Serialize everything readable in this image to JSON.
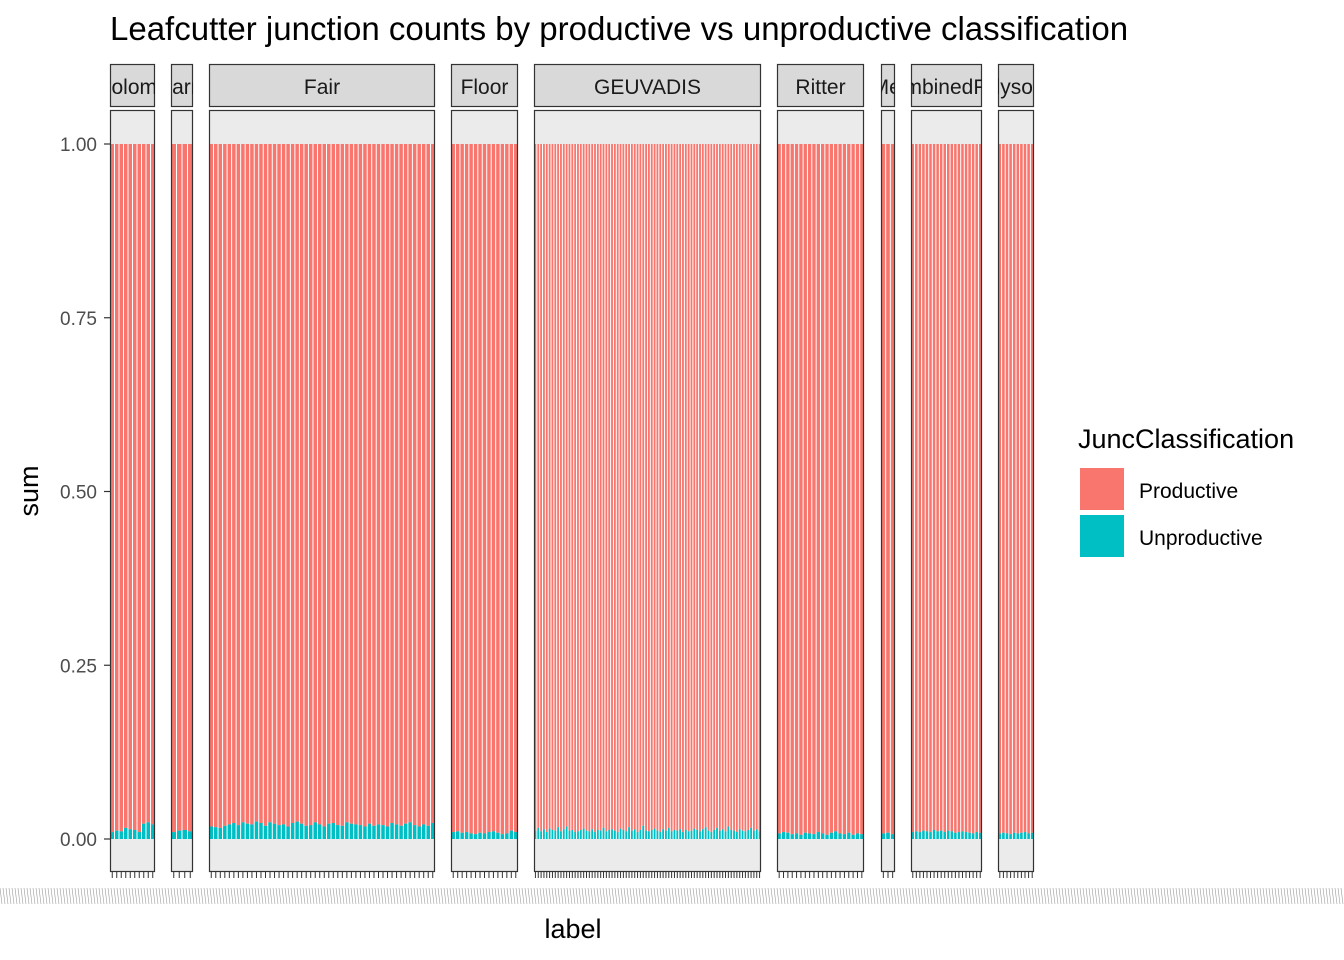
{
  "title": "Leafcutter junction counts by productive vs unproductive classification",
  "chart_data": {
    "type": "bar",
    "stacked": true,
    "position": "fill",
    "title": "Leafcutter junction counts by productive vs unproductive classification",
    "xlabel": "label",
    "ylabel": "sum",
    "ylim": [
      0,
      1
    ],
    "yticks": [
      0,
      0.25,
      0.5,
      0.75,
      1.0
    ],
    "ytick_labels": [
      "0.00",
      "0.25",
      "0.50",
      "0.75",
      "1.00"
    ],
    "legend": {
      "title": "JuncClassification",
      "position": "right",
      "entries": [
        {
          "name": "Productive",
          "color": "#F8766D"
        },
        {
          "name": "Unproductive",
          "color": "#00BFC4"
        }
      ]
    },
    "facets": [
      {
        "label": "Colomb",
        "unproductive": [
          0.01,
          0.012,
          0.011,
          0.016,
          0.014,
          0.013,
          0.01,
          0.022,
          0.024,
          0.021
        ]
      },
      {
        "label": "Garm",
        "unproductive": [
          0.01,
          0.012,
          0.013,
          0.011
        ]
      },
      {
        "label": "Fair",
        "unproductive": [
          0.018,
          0.017,
          0.016,
          0.019,
          0.021,
          0.023,
          0.02,
          0.024,
          0.022,
          0.021,
          0.025,
          0.023,
          0.019,
          0.024,
          0.022,
          0.02,
          0.021,
          0.018,
          0.023,
          0.025,
          0.022,
          0.019,
          0.02,
          0.024,
          0.021,
          0.018,
          0.022,
          0.023,
          0.02,
          0.019,
          0.024,
          0.022,
          0.021,
          0.02,
          0.018,
          0.022,
          0.019,
          0.021,
          0.02,
          0.018,
          0.023,
          0.021,
          0.019,
          0.022,
          0.024,
          0.02,
          0.018,
          0.021,
          0.019,
          0.023
        ]
      },
      {
        "label": "Floor",
        "unproductive": [
          0.01,
          0.011,
          0.009,
          0.01,
          0.008,
          0.007,
          0.009,
          0.008,
          0.01,
          0.011,
          0.009,
          0.007,
          0.008,
          0.012,
          0.01
        ]
      },
      {
        "label": "GEUVADIS",
        "unproductive": [
          0.012,
          0.016,
          0.011,
          0.014,
          0.01,
          0.015,
          0.013,
          0.012,
          0.017,
          0.011,
          0.014,
          0.018,
          0.012,
          0.013,
          0.01,
          0.011,
          0.013,
          0.015,
          0.012,
          0.011,
          0.014,
          0.01,
          0.013,
          0.012,
          0.016,
          0.011,
          0.013,
          0.014,
          0.012,
          0.01,
          0.015,
          0.013,
          0.011,
          0.017,
          0.012,
          0.014,
          0.01,
          0.013,
          0.019,
          0.012,
          0.011,
          0.013,
          0.015,
          0.012,
          0.01,
          0.014,
          0.012,
          0.016,
          0.011,
          0.013,
          0.012,
          0.014,
          0.01,
          0.013,
          0.011,
          0.012,
          0.015,
          0.013,
          0.011,
          0.014,
          0.017,
          0.012,
          0.01,
          0.013,
          0.016,
          0.012,
          0.014,
          0.011,
          0.018,
          0.013,
          0.012,
          0.01,
          0.014,
          0.012,
          0.011,
          0.013,
          0.016,
          0.012,
          0.014,
          0.011
        ]
      },
      {
        "label": "Ritter",
        "unproductive": [
          0.008,
          0.01,
          0.009,
          0.007,
          0.008,
          0.006,
          0.009,
          0.008,
          0.007,
          0.01,
          0.008,
          0.006,
          0.009,
          0.011,
          0.008,
          0.007,
          0.009,
          0.006,
          0.008,
          0.007
        ]
      },
      {
        "label": "Huie-MedFrac",
        "unproductive": [
          0.008,
          0.009,
          0.007
        ]
      },
      {
        "label": "CombinedFrac",
        "unproductive": [
          0.01,
          0.011,
          0.01,
          0.012,
          0.011,
          0.01,
          0.013,
          0.011,
          0.012,
          0.01,
          0.012,
          0.011,
          0.009,
          0.01,
          0.011,
          0.01,
          0.009,
          0.008,
          0.01,
          0.009
        ]
      },
      {
        "label": "Polysome",
        "unproductive": [
          0.008,
          0.009,
          0.008,
          0.007,
          0.009,
          0.008,
          0.009,
          0.01,
          0.008,
          0.009
        ]
      }
    ]
  }
}
